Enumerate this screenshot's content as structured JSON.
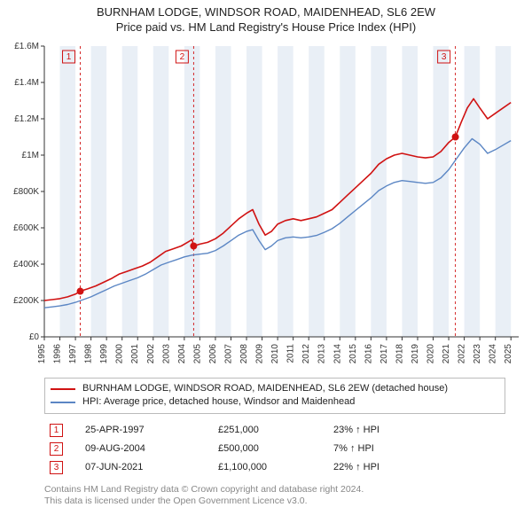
{
  "titles": {
    "line1": "BURNHAM LODGE, WINDSOR ROAD, MAIDENHEAD, SL6 2EW",
    "line2": "Price paid vs. HM Land Registry's House Price Index (HPI)"
  },
  "chart": {
    "type": "line",
    "background_color": "#ffffff",
    "band_color": "#e9eff6",
    "axis_color": "#333333",
    "tick_font_size": 10,
    "x_years": [
      1995,
      1996,
      1997,
      1998,
      1999,
      2000,
      2001,
      2002,
      2003,
      2004,
      2005,
      2006,
      2007,
      2008,
      2009,
      2010,
      2011,
      2012,
      2013,
      2014,
      2015,
      2016,
      2017,
      2018,
      2019,
      2020,
      2021,
      2022,
      2023,
      2024,
      2025
    ],
    "y_ticks": [
      0,
      200000,
      400000,
      600000,
      800000,
      1000000,
      1200000,
      1400000,
      1600000
    ],
    "y_tick_labels": [
      "£0",
      "£200K",
      "£400K",
      "£600K",
      "£800K",
      "£1M",
      "£1.2M",
      "£1.4M",
      "£1.6M"
    ],
    "ylim": [
      0,
      1600000
    ],
    "xlim": [
      1995,
      2025.5
    ],
    "series": [
      {
        "key": "price_paid",
        "color": "#d01212",
        "width": 1.6,
        "points": [
          [
            1995.0,
            200000
          ],
          [
            1995.5,
            205000
          ],
          [
            1996.0,
            210000
          ],
          [
            1996.5,
            220000
          ],
          [
            1997.0,
            235000
          ],
          [
            1997.31,
            251000
          ],
          [
            1997.8,
            265000
          ],
          [
            1998.3,
            280000
          ],
          [
            1998.8,
            300000
          ],
          [
            1999.3,
            320000
          ],
          [
            1999.8,
            345000
          ],
          [
            2000.3,
            360000
          ],
          [
            2000.8,
            375000
          ],
          [
            2001.3,
            390000
          ],
          [
            2001.8,
            410000
          ],
          [
            2002.3,
            440000
          ],
          [
            2002.8,
            470000
          ],
          [
            2003.3,
            485000
          ],
          [
            2003.8,
            500000
          ],
          [
            2004.2,
            520000
          ],
          [
            2004.5,
            535000
          ],
          [
            2004.6,
            500000
          ],
          [
            2005.0,
            510000
          ],
          [
            2005.5,
            520000
          ],
          [
            2006.0,
            540000
          ],
          [
            2006.5,
            570000
          ],
          [
            2007.0,
            610000
          ],
          [
            2007.5,
            650000
          ],
          [
            2008.0,
            680000
          ],
          [
            2008.4,
            700000
          ],
          [
            2008.8,
            620000
          ],
          [
            2009.2,
            560000
          ],
          [
            2009.6,
            580000
          ],
          [
            2010.0,
            620000
          ],
          [
            2010.5,
            640000
          ],
          [
            2011.0,
            650000
          ],
          [
            2011.5,
            640000
          ],
          [
            2012.0,
            650000
          ],
          [
            2012.5,
            660000
          ],
          [
            2013.0,
            680000
          ],
          [
            2013.5,
            700000
          ],
          [
            2014.0,
            740000
          ],
          [
            2014.5,
            780000
          ],
          [
            2015.0,
            820000
          ],
          [
            2015.5,
            860000
          ],
          [
            2016.0,
            900000
          ],
          [
            2016.5,
            950000
          ],
          [
            2017.0,
            980000
          ],
          [
            2017.5,
            1000000
          ],
          [
            2018.0,
            1010000
          ],
          [
            2018.5,
            1000000
          ],
          [
            2019.0,
            990000
          ],
          [
            2019.5,
            985000
          ],
          [
            2020.0,
            990000
          ],
          [
            2020.5,
            1020000
          ],
          [
            2021.0,
            1070000
          ],
          [
            2021.43,
            1100000
          ],
          [
            2021.8,
            1180000
          ],
          [
            2022.2,
            1260000
          ],
          [
            2022.6,
            1310000
          ],
          [
            2023.0,
            1260000
          ],
          [
            2023.5,
            1200000
          ],
          [
            2024.0,
            1230000
          ],
          [
            2024.5,
            1260000
          ],
          [
            2025.0,
            1290000
          ]
        ]
      },
      {
        "key": "hpi",
        "color": "#5b86c4",
        "width": 1.4,
        "points": [
          [
            1995.0,
            160000
          ],
          [
            1995.5,
            165000
          ],
          [
            1996.0,
            170000
          ],
          [
            1996.5,
            178000
          ],
          [
            1997.0,
            190000
          ],
          [
            1997.5,
            205000
          ],
          [
            1998.0,
            220000
          ],
          [
            1998.5,
            240000
          ],
          [
            1999.0,
            260000
          ],
          [
            1999.5,
            280000
          ],
          [
            2000.0,
            295000
          ],
          [
            2000.5,
            310000
          ],
          [
            2001.0,
            325000
          ],
          [
            2001.5,
            345000
          ],
          [
            2002.0,
            370000
          ],
          [
            2002.5,
            395000
          ],
          [
            2003.0,
            410000
          ],
          [
            2003.5,
            425000
          ],
          [
            2004.0,
            440000
          ],
          [
            2004.5,
            450000
          ],
          [
            2005.0,
            455000
          ],
          [
            2005.5,
            460000
          ],
          [
            2006.0,
            475000
          ],
          [
            2006.5,
            500000
          ],
          [
            2007.0,
            530000
          ],
          [
            2007.5,
            560000
          ],
          [
            2008.0,
            580000
          ],
          [
            2008.4,
            590000
          ],
          [
            2008.8,
            530000
          ],
          [
            2009.2,
            480000
          ],
          [
            2009.6,
            500000
          ],
          [
            2010.0,
            530000
          ],
          [
            2010.5,
            545000
          ],
          [
            2011.0,
            550000
          ],
          [
            2011.5,
            545000
          ],
          [
            2012.0,
            550000
          ],
          [
            2012.5,
            558000
          ],
          [
            2013.0,
            575000
          ],
          [
            2013.5,
            595000
          ],
          [
            2014.0,
            625000
          ],
          [
            2014.5,
            660000
          ],
          [
            2015.0,
            695000
          ],
          [
            2015.5,
            730000
          ],
          [
            2016.0,
            765000
          ],
          [
            2016.5,
            805000
          ],
          [
            2017.0,
            830000
          ],
          [
            2017.5,
            850000
          ],
          [
            2018.0,
            860000
          ],
          [
            2018.5,
            855000
          ],
          [
            2019.0,
            850000
          ],
          [
            2019.5,
            845000
          ],
          [
            2020.0,
            850000
          ],
          [
            2020.5,
            875000
          ],
          [
            2021.0,
            920000
          ],
          [
            2021.5,
            980000
          ],
          [
            2022.0,
            1040000
          ],
          [
            2022.5,
            1090000
          ],
          [
            2023.0,
            1060000
          ],
          [
            2023.5,
            1010000
          ],
          [
            2024.0,
            1030000
          ],
          [
            2024.5,
            1055000
          ],
          [
            2025.0,
            1080000
          ]
        ]
      }
    ],
    "sale_dots": {
      "color": "#d01212",
      "radius": 4,
      "points": [
        [
          1997.31,
          251000
        ],
        [
          2004.6,
          500000
        ],
        [
          2021.43,
          1100000
        ]
      ]
    },
    "marker_lines": {
      "color": "#d01212",
      "dash": "3,3",
      "width": 0.9,
      "items": [
        {
          "label": "1",
          "x": 1997.31
        },
        {
          "label": "2",
          "x": 2004.6
        },
        {
          "label": "3",
          "x": 2021.43
        }
      ]
    }
  },
  "legend": {
    "items": [
      {
        "color": "#d01212",
        "label": "BURNHAM LODGE, WINDSOR ROAD, MAIDENHEAD, SL6 2EW (detached house)"
      },
      {
        "color": "#5b86c4",
        "label": "HPI: Average price, detached house, Windsor and Maidenhead"
      }
    ]
  },
  "markers_table": {
    "badge_border": "#d01212",
    "badge_text": "#d01212",
    "rows": [
      {
        "n": "1",
        "date": "25-APR-1997",
        "price": "£251,000",
        "delta": "23% ↑ HPI"
      },
      {
        "n": "2",
        "date": "09-AUG-2004",
        "price": "£500,000",
        "delta": "7% ↑ HPI"
      },
      {
        "n": "3",
        "date": "07-JUN-2021",
        "price": "£1,100,000",
        "delta": "22% ↑ HPI"
      }
    ]
  },
  "footnote": {
    "line1": "Contains HM Land Registry data © Crown copyright and database right 2024.",
    "line2": "This data is licensed under the Open Government Licence v3.0."
  }
}
